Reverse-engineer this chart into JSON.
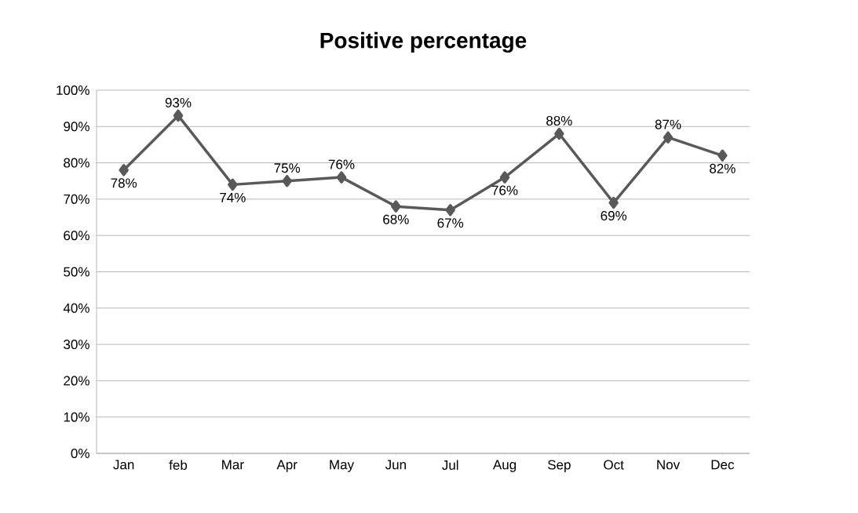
{
  "chart_data": {
    "type": "line",
    "title": "Positive percentage",
    "categories": [
      "Jan",
      "feb",
      "Mar",
      "Apr",
      "May",
      "Jun",
      "Jul",
      "Aug",
      "Sep",
      "Oct",
      "Nov",
      "Dec"
    ],
    "values": [
      78,
      93,
      74,
      75,
      76,
      68,
      67,
      76,
      88,
      69,
      87,
      82
    ],
    "value_labels": [
      "78%",
      "93%",
      "74%",
      "75%",
      "76%",
      "68%",
      "67%",
      "76%",
      "88%",
      "69%",
      "87%",
      "82%"
    ],
    "color": "#595959",
    "ylim": [
      0,
      100
    ],
    "yticks": [
      {
        "value": 0,
        "label": "0%"
      },
      {
        "value": 10,
        "label": "10%"
      },
      {
        "value": 20,
        "label": "20%"
      },
      {
        "value": 30,
        "label": "30%"
      },
      {
        "value": 40,
        "label": "40%"
      },
      {
        "value": 50,
        "label": "50%"
      },
      {
        "value": 60,
        "label": "60%"
      },
      {
        "value": 70,
        "label": "70%"
      },
      {
        "value": 80,
        "label": "80%"
      },
      {
        "value": 90,
        "label": "90%"
      },
      {
        "value": 100,
        "label": "100%"
      }
    ],
    "grid": "y",
    "marker": "diamond",
    "line_style": "solid"
  }
}
